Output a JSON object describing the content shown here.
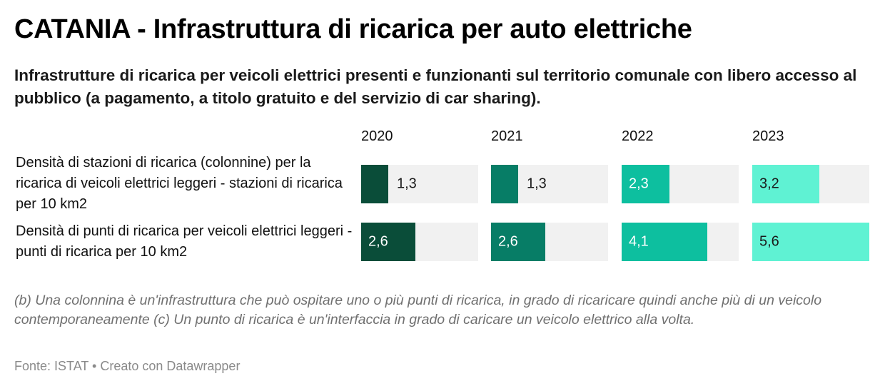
{
  "title": "CATANIA - Infrastruttura di ricarica per auto elettriche",
  "subtitle": "Infrastrutture di ricarica per veicoli elettrici presenti e funzionanti sul territorio comunale con libero accesso al pubblico (a pagamento, a titolo gratuito e del servizio di car sharing).",
  "chart_data": {
    "type": "bar",
    "columns": [
      "2020",
      "2021",
      "2022",
      "2023"
    ],
    "column_colors": [
      "#0a4d39",
      "#077d66",
      "#0dbf9f",
      "#5ff2d3"
    ],
    "rows": [
      {
        "label": "Densità di stazioni di ricarica (colonnine) per la ricarica di veicoli elettrici leggeri - stazioni di ricarica per 10 km2",
        "values": [
          1.3,
          1.3,
          2.3,
          3.2
        ],
        "value_labels": [
          "1,3",
          "1,3",
          "2,3",
          "3,2"
        ]
      },
      {
        "label": "Densità di punti di ricarica per veicoli elettrici leggeri - punti di ricarica per 10 km2",
        "values": [
          2.6,
          2.6,
          4.1,
          5.6
        ],
        "value_labels": [
          "2,6",
          "2,6",
          "4,1",
          "5,6"
        ]
      }
    ],
    "max_value": 5.6
  },
  "notes": "(b) Una colonnina è un'infrastruttura che può ospitare uno o più punti di ricarica, in grado di ricaricare quindi anche più di un veicolo contemporaneamente (c) Un punto di ricarica è un'interfaccia in grado di caricare un veicolo elettrico alla volta.",
  "source": "Fonte: ISTAT • Creato con Datawrapper"
}
